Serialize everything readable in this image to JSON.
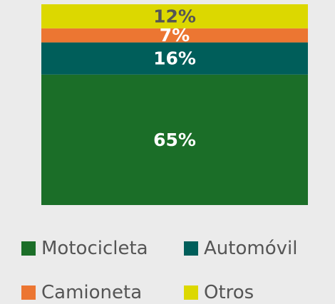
{
  "chart_data": {
    "type": "bar",
    "stacked": true,
    "categories": [
      null
    ],
    "ylim": [
      0,
      100
    ],
    "series": [
      {
        "name": "Motocicleta",
        "color": "#1b6e28",
        "values": [
          65
        ],
        "value_labels": [
          "65%"
        ]
      },
      {
        "name": "Automóvil",
        "color": "#005e5a",
        "values": [
          16
        ],
        "value_labels": [
          "16%"
        ]
      },
      {
        "name": "Camioneta",
        "color": "#ec7632",
        "values": [
          7
        ],
        "value_labels": [
          "7%"
        ]
      },
      {
        "name": "Otros",
        "color": "#dcd800",
        "values": [
          12
        ],
        "value_labels": [
          "12%"
        ]
      }
    ]
  }
}
